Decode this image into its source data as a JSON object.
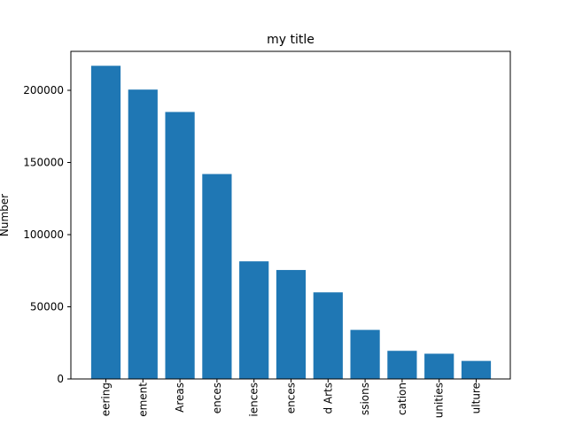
{
  "chart_data": {
    "type": "bar",
    "title": "my title",
    "xlabel": "",
    "ylabel": "Number",
    "categories": [
      "eering",
      "ement",
      "Areas",
      "ences",
      "iences",
      "ences",
      "d Arts",
      "ssions",
      "cation",
      "unities",
      "ulture"
    ],
    "values": [
      217000,
      200500,
      185000,
      142000,
      81500,
      75500,
      60000,
      34000,
      19500,
      17500,
      12500
    ],
    "ylim": [
      0,
      227000
    ],
    "yticks": [
      0,
      50000,
      100000,
      150000,
      200000
    ],
    "grid": false,
    "bar_color": "#1f77b4"
  }
}
